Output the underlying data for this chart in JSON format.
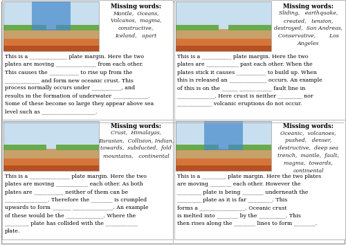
{
  "bg_color": "#ffffff",
  "outer_border_color": "#999999",
  "panel_border_color": "#aaaaaa",
  "title_color": "#000000",
  "body_color": "#000000",
  "mw_italic_color": "#222222",
  "fig_w": 5.0,
  "fig_h": 3.54,
  "dpi": 100,
  "panels": [
    {
      "missing_words_title": "Missing words:",
      "missing_words": "Mantle,  Oceans,\nVolcanos,  magma,\nconstructive,\nIceland,   apart",
      "body_text": "This is a ______________ plate margin. Here the two\nplates are moving _______________ from each other.\nThis causes the ___________ to rise up from the\n_____________ and form new oceanic crust. This\nprocess normally occurs under ___________, and\nresults in the formation of underwater _____________.\nSome of these become so large they appear above sea\nlevel such as ____________________.",
      "img_colors": [
        "#5b9e6e",
        "#4a86c8",
        "#c8a05a",
        "#d97b3a"
      ],
      "img_label": "constructive"
    },
    {
      "missing_words_title": "Missing words:",
      "missing_words": "Sliding,   earthquake,\ncreated,   tension,\ndestroyed,  San Andreas,\nConservative,        Los\nAngeles",
      "body_text": "This is a ___________ plate margin. Here the two\nplates are ____________ past each other. When the\nplates stick it causes ___________ to build up. When\nthis is released an ______________ occurs. An example\nof this is on the ______ ____________ fault line in\n______________. Here crust is neither _________ nor\n_____________ volcanic eruptions do not occur.",
      "img_colors": [
        "#6a9e5a",
        "#7bb870",
        "#c8b870",
        "#8aab68"
      ],
      "img_label": "conservative"
    },
    {
      "missing_words_title": "Missing words:",
      "missing_words": "Crust,  Himalayas,\nEurasian,  Collision, Indian,\ntowards,  subducted,  fold\nmountains,   continental",
      "body_text": "This is a _______________ plate margin. Here the two\nplates are moving ____________ each other. As both\nplates are ___________ neither of them can be\n________________. Therefore the ________ is crumpled\nupwards to form _______ _______________. An example\nof these would be the ______________. Where the\n_________ plate has collided with the ____________\nplate.",
      "img_colors": [
        "#7aaa5a",
        "#c8a05a",
        "#d97b3a",
        "#a06030"
      ],
      "img_label": "collision"
    },
    {
      "missing_words_title": "Missing words:",
      "missing_words": "Oceanic,  volcanoes,\npushed,   denser,\ndestructive,  deep sea\ntrench,  mantle,  fault,\nmagma,  towards,\ncontinental",
      "body_text": "This is a _________ plate margin. Here the two plates\nare moving ________ each other. However the\n_________ plate is being ________ underneath the\n_________ plate as it is far _________. This\nforms a _________________. Oceanic crust\nis melted into ________ by the __________. This\nthen rises along the ________ lines to form ________.",
      "img_colors": [
        "#5588bb",
        "#c8a05a",
        "#d97b3a",
        "#e8c87a"
      ],
      "img_label": "destructive"
    }
  ]
}
